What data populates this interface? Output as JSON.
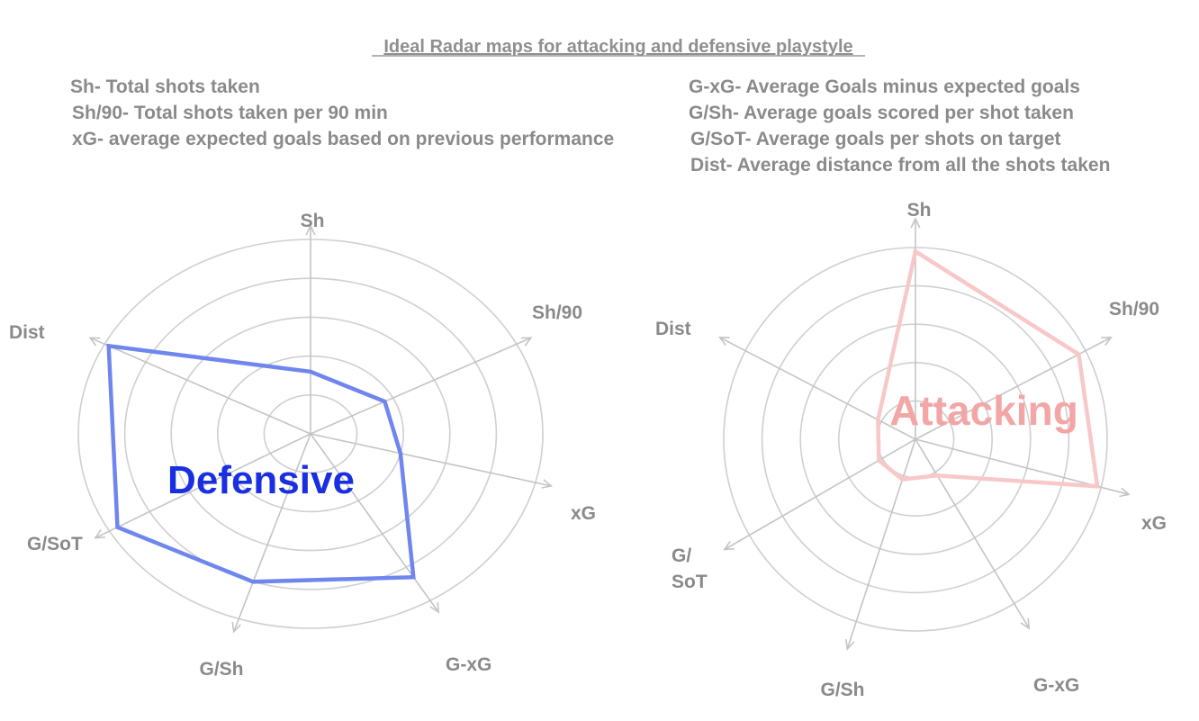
{
  "title": "Ideal Radar maps for attacking and defensive playstyle",
  "legend_left": [
    "Sh- Total shots taken",
    "Sh/90- Total shots taken per 90 min",
    "xG- average expected goals based on previous performance"
  ],
  "legend_right": [
    "G-xG- Average Goals minus expected goals",
    "G/Sh- Average goals scored per shot taken",
    "G/SoT- Average goals per shots on target",
    "Dist- Average distance from all the shots taken"
  ],
  "colors": {
    "defensive": "#6f86ee",
    "defensive_label": "#1a2fe0",
    "attacking": "#f8c8c8",
    "attacking_label": "#f3a6a6"
  },
  "chart_data": [
    {
      "type": "radar",
      "label": "Defensive",
      "axes": [
        "Sh",
        "Sh/90",
        "xG",
        "G-xG",
        "G/Sh",
        "G/SoT",
        "Dist"
      ],
      "rmax": 5,
      "rings": 5,
      "grid": true,
      "values": [
        1.6,
        1.8,
        2.0,
        4.3,
        4.0,
        4.8,
        4.9
      ]
    },
    {
      "type": "radar",
      "label": "Attacking",
      "axes": [
        "Sh",
        "Sh/90",
        "xG",
        "G-xG",
        "G/Sh",
        "G/SoT",
        "Dist"
      ],
      "rmax": 5,
      "rings": 5,
      "grid": true,
      "values": [
        4.9,
        4.8,
        4.9,
        1.1,
        1.1,
        1.1,
        1.1
      ]
    }
  ]
}
